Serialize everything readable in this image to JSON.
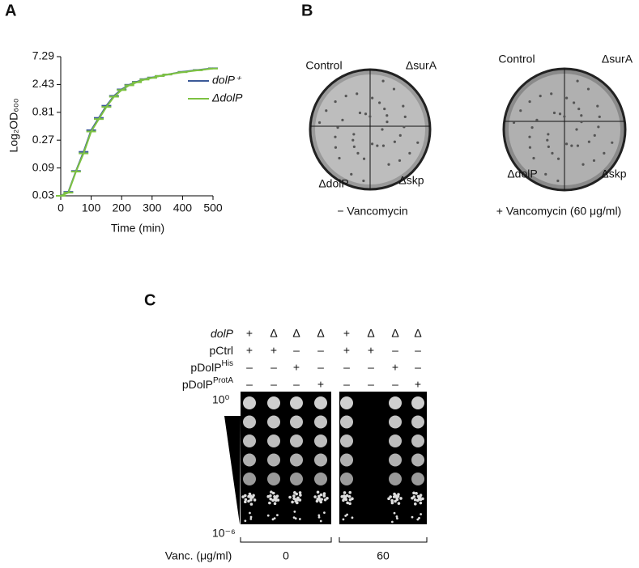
{
  "panel_a": {
    "label": "A",
    "chart_data": {
      "type": "line",
      "x_label": "Time (min)",
      "y_label": "Log₂OD₆₀₀",
      "x": [
        0,
        25,
        50,
        75,
        100,
        125,
        150,
        175,
        200,
        225,
        250,
        275,
        300,
        325,
        350,
        400,
        450,
        500
      ],
      "series": [
        {
          "name": "dolP⁺",
          "color": "#3b5998",
          "values": [
            0.03,
            0.035,
            0.08,
            0.17,
            0.4,
            0.65,
            1.05,
            1.55,
            2.0,
            2.4,
            2.7,
            3.0,
            3.2,
            3.4,
            3.6,
            4.0,
            4.3,
            4.6
          ]
        },
        {
          "name": "ΔdolP",
          "color": "#7dc242",
          "values": [
            0.03,
            0.034,
            0.078,
            0.16,
            0.38,
            0.62,
            1.0,
            1.5,
            1.95,
            2.35,
            2.65,
            2.95,
            3.15,
            3.4,
            3.6,
            3.95,
            4.25,
            4.55
          ]
        }
      ],
      "xlim": [
        0,
        500
      ],
      "xticks": [
        0,
        100,
        200,
        300,
        400,
        500
      ],
      "ylim": [
        0.03,
        7.29
      ],
      "yticks": [
        0.03,
        0.09,
        0.27,
        0.81,
        2.43,
        7.29
      ],
      "log_y": true,
      "legend": "right"
    }
  },
  "panel_b": {
    "label": "B",
    "plates": [
      {
        "labels": [
          "Control",
          "ΔsurA",
          "ΔdolP",
          "Δskp"
        ],
        "caption": "− Vancomycin"
      },
      {
        "labels": [
          "Control",
          "ΔsurA",
          "ΔdolP",
          "Δskp"
        ],
        "caption": "+ Vancomycin (60 μg/ml)"
      }
    ]
  },
  "panel_c": {
    "label": "C",
    "row_labels": [
      {
        "text": "dolP"
      },
      {
        "text": "pCtrl"
      },
      {
        "text": "pDolP",
        "sup": "His"
      },
      {
        "text": "pDolP",
        "sup": "ProtA"
      }
    ],
    "rows": [
      [
        "+",
        "Δ",
        "Δ",
        "Δ",
        "+",
        "Δ",
        "Δ",
        "Δ"
      ],
      [
        "+",
        "+",
        "–",
        "–",
        "+",
        "+",
        "–",
        "–"
      ],
      [
        "–",
        "–",
        "+",
        "–",
        "–",
        "–",
        "+",
        "–"
      ],
      [
        "–",
        "–",
        "–",
        "+",
        "–",
        "–",
        "–",
        "+"
      ]
    ],
    "dilution_top": "10⁰",
    "dilution_bottom": "10⁻⁶",
    "vanc_label": "Vanc. (μg/ml)",
    "groups": [
      "0",
      "60"
    ]
  }
}
